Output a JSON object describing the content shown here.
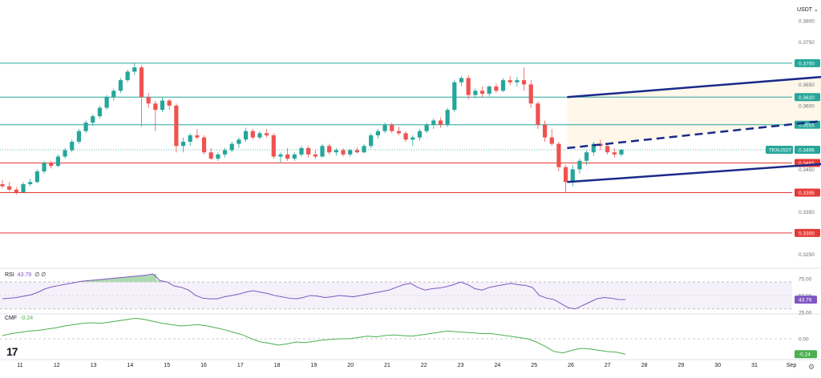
{
  "currency": "USDT",
  "dropdown_glyph": "⌄",
  "settings_icon": "gear-icon",
  "logo_text": "17",
  "colors": {
    "up": "#26a69a",
    "down": "#ef5350",
    "channel": "#1a2a8a",
    "resistance": "#26a69a",
    "support": "#e53935",
    "rsi": "#7e57c2",
    "cmf": "#4caf50",
    "last_price": "#26a69a"
  },
  "chart_data": [
    {
      "type": "candlestick",
      "symbol": "TRXUSDT",
      "ylim": [
        0.323,
        0.383
      ],
      "price_ticks": [
        "0.3800",
        "0.3750",
        "0.3650",
        "0.3600",
        "0.3450",
        "0.3350",
        "0.3250"
      ],
      "x_labels": [
        "11",
        "12",
        "13",
        "14",
        "15",
        "16",
        "17",
        "18",
        "19",
        "20",
        "21",
        "22",
        "23",
        "24",
        "25",
        "26",
        "27",
        "28",
        "29",
        "30",
        "31",
        "Sep"
      ],
      "candles": [
        [
          0.3415,
          0.3425,
          0.3405,
          0.341
        ],
        [
          0.341,
          0.342,
          0.3398,
          0.3402
        ],
        [
          0.3402,
          0.3408,
          0.339,
          0.3396
        ],
        [
          0.3396,
          0.342,
          0.3395,
          0.3415
        ],
        [
          0.3415,
          0.3428,
          0.341,
          0.342
        ],
        [
          0.342,
          0.345,
          0.3418,
          0.3445
        ],
        [
          0.3445,
          0.347,
          0.344,
          0.3465
        ],
        [
          0.3465,
          0.347,
          0.3452,
          0.3458
        ],
        [
          0.3458,
          0.3485,
          0.3455,
          0.348
        ],
        [
          0.348,
          0.35,
          0.3475,
          0.3495
        ],
        [
          0.3495,
          0.352,
          0.349,
          0.3515
        ],
        [
          0.3515,
          0.3545,
          0.351,
          0.354
        ],
        [
          0.354,
          0.3565,
          0.3535,
          0.356
        ],
        [
          0.356,
          0.358,
          0.3552,
          0.3575
        ],
        [
          0.3575,
          0.36,
          0.357,
          0.3595
        ],
        [
          0.3595,
          0.3625,
          0.359,
          0.362
        ],
        [
          0.362,
          0.364,
          0.3612,
          0.3635
        ],
        [
          0.3635,
          0.3665,
          0.363,
          0.366
        ],
        [
          0.366,
          0.3685,
          0.3655,
          0.368
        ],
        [
          0.368,
          0.37,
          0.3672,
          0.369
        ],
        [
          0.369,
          0.3695,
          0.355,
          0.362
        ],
        [
          0.362,
          0.363,
          0.3595,
          0.3605
        ],
        [
          0.3605,
          0.3612,
          0.354,
          0.359
        ],
        [
          0.359,
          0.362,
          0.3585,
          0.3612
        ],
        [
          0.3612,
          0.3616,
          0.359,
          0.36
        ],
        [
          0.36,
          0.3605,
          0.349,
          0.3505
        ],
        [
          0.3505,
          0.3525,
          0.349,
          0.3515
        ],
        [
          0.3515,
          0.3535,
          0.3505,
          0.353
        ],
        [
          0.353,
          0.3545,
          0.352,
          0.3525
        ],
        [
          0.3525,
          0.353,
          0.3485,
          0.349
        ],
        [
          0.349,
          0.35,
          0.3472,
          0.3475
        ],
        [
          0.3475,
          0.349,
          0.347,
          0.3485
        ],
        [
          0.3485,
          0.35,
          0.3478,
          0.3495
        ],
        [
          0.3495,
          0.3515,
          0.349,
          0.351
        ],
        [
          0.351,
          0.3525,
          0.35,
          0.352
        ],
        [
          0.352,
          0.3548,
          0.3515,
          0.354
        ],
        [
          0.354,
          0.3545,
          0.352,
          0.3525
        ],
        [
          0.3525,
          0.354,
          0.352,
          0.3535
        ],
        [
          0.3535,
          0.3545,
          0.3525,
          0.353
        ],
        [
          0.353,
          0.3535,
          0.3475,
          0.348
        ],
        [
          0.348,
          0.349,
          0.3465,
          0.3485
        ],
        [
          0.3485,
          0.35,
          0.347,
          0.3475
        ],
        [
          0.3475,
          0.349,
          0.347,
          0.3485
        ],
        [
          0.3485,
          0.3505,
          0.348,
          0.35
        ],
        [
          0.35,
          0.3505,
          0.3478,
          0.3485
        ],
        [
          0.3485,
          0.3495,
          0.3475,
          0.348
        ],
        [
          0.348,
          0.351,
          0.3478,
          0.3505
        ],
        [
          0.3505,
          0.351,
          0.3485,
          0.349
        ],
        [
          0.349,
          0.35,
          0.3482,
          0.3495
        ],
        [
          0.3495,
          0.35,
          0.348,
          0.3485
        ],
        [
          0.3485,
          0.3498,
          0.348,
          0.3495
        ],
        [
          0.3495,
          0.3502,
          0.3488,
          0.349
        ],
        [
          0.349,
          0.351,
          0.3488,
          0.3505
        ],
        [
          0.3505,
          0.3535,
          0.35,
          0.353
        ],
        [
          0.353,
          0.3545,
          0.3522,
          0.354
        ],
        [
          0.354,
          0.356,
          0.3535,
          0.3555
        ],
        [
          0.3555,
          0.356,
          0.3535,
          0.354
        ],
        [
          0.354,
          0.355,
          0.353,
          0.3535
        ],
        [
          0.3535,
          0.354,
          0.3515,
          0.352
        ],
        [
          0.352,
          0.353,
          0.3505,
          0.3525
        ],
        [
          0.3525,
          0.3545,
          0.3518,
          0.354
        ],
        [
          0.354,
          0.356,
          0.3535,
          0.3555
        ],
        [
          0.3555,
          0.357,
          0.3545,
          0.3565
        ],
        [
          0.3565,
          0.3572,
          0.3548,
          0.3555
        ],
        [
          0.3555,
          0.3595,
          0.355,
          0.359
        ],
        [
          0.359,
          0.366,
          0.3585,
          0.3655
        ],
        [
          0.3655,
          0.367,
          0.3645,
          0.3665
        ],
        [
          0.3665,
          0.3672,
          0.3615,
          0.3625
        ],
        [
          0.3625,
          0.364,
          0.3618,
          0.3635
        ],
        [
          0.3635,
          0.3645,
          0.362,
          0.3628
        ],
        [
          0.3628,
          0.3648,
          0.3622,
          0.3645
        ],
        [
          0.3645,
          0.3652,
          0.363,
          0.3635
        ],
        [
          0.3635,
          0.3665,
          0.3632,
          0.366
        ],
        [
          0.366,
          0.367,
          0.3648,
          0.3655
        ],
        [
          0.3655,
          0.3668,
          0.3645,
          0.366
        ],
        [
          0.366,
          0.369,
          0.3635,
          0.365
        ],
        [
          0.365,
          0.366,
          0.3595,
          0.3605
        ],
        [
          0.3605,
          0.361,
          0.3545,
          0.3555
        ],
        [
          0.3555,
          0.3565,
          0.3515,
          0.3525
        ],
        [
          0.3525,
          0.3545,
          0.3505,
          0.351
        ],
        [
          0.351,
          0.3515,
          0.3445,
          0.3455
        ],
        [
          0.3455,
          0.346,
          0.3395,
          0.342
        ],
        [
          0.342,
          0.346,
          0.341,
          0.345
        ],
        [
          0.345,
          0.3475,
          0.344,
          0.347
        ],
        [
          0.347,
          0.3495,
          0.346,
          0.349
        ],
        [
          0.349,
          0.3515,
          0.3482,
          0.351
        ],
        [
          0.351,
          0.352,
          0.3495,
          0.3505
        ],
        [
          0.3505,
          0.3512,
          0.3485,
          0.349
        ],
        [
          0.349,
          0.35,
          0.3478,
          0.3485
        ],
        [
          0.3485,
          0.3498,
          0.348,
          0.3496
        ]
      ],
      "resistance_levels": [
        "0.3700",
        "0.3620",
        "0.3555"
      ],
      "support_levels": [
        "0.3465",
        "0.3395",
        "0.3300"
      ],
      "last_price": {
        "label": "TRXUSDT",
        "value": "0.3496"
      },
      "trend_channel": {
        "x_start": 14.9,
        "x_end": 28.0,
        "upper": [
          0.362,
          0.371
        ],
        "middle": [
          0.35,
          0.362
        ],
        "lower": [
          0.342,
          0.35
        ]
      }
    },
    {
      "type": "line",
      "name": "RSI",
      "legend_label": "RSI",
      "current": "43.79",
      "extra": "∅ ∅",
      "ylim": [
        25,
        82
      ],
      "ticks": [
        "75.00",
        "50.00",
        "25.00"
      ],
      "band": [
        30,
        70
      ],
      "values": [
        45,
        46,
        47,
        49,
        51,
        55,
        60,
        63,
        65,
        67,
        69,
        71,
        72,
        73,
        74,
        75,
        76,
        77,
        78,
        79,
        80,
        82,
        72,
        70,
        64,
        62,
        58,
        50,
        46,
        45,
        45,
        48,
        50,
        52,
        55,
        57,
        55,
        53,
        50,
        48,
        46,
        45,
        47,
        50,
        49,
        47,
        48,
        50,
        49,
        48,
        50,
        52,
        54,
        56,
        58,
        62,
        66,
        68,
        62,
        58,
        60,
        61,
        63,
        66,
        70,
        66,
        60,
        58,
        62,
        64,
        66,
        68,
        66,
        65,
        62,
        50,
        46,
        44,
        38,
        32,
        30,
        35,
        40,
        45,
        47,
        46,
        44,
        43.79
      ]
    },
    {
      "type": "line",
      "name": "CMF",
      "legend_label": "CMF",
      "current": "-0.24",
      "ylim": [
        -0.3,
        0.35
      ],
      "ticks": [
        "0.00"
      ],
      "values": [
        0.05,
        0.08,
        0.1,
        0.12,
        0.13,
        0.15,
        0.17,
        0.2,
        0.22,
        0.24,
        0.25,
        0.24,
        0.26,
        0.28,
        0.3,
        0.32,
        0.3,
        0.27,
        0.24,
        0.22,
        0.2,
        0.21,
        0.22,
        0.2,
        0.17,
        0.14,
        0.1,
        0.06,
        0.0,
        -0.05,
        -0.07,
        -0.1,
        -0.08,
        -0.05,
        -0.06,
        -0.04,
        -0.02,
        -0.01,
        0.0,
        0.0,
        0.02,
        0.04,
        0.03,
        0.05,
        0.06,
        0.05,
        0.04,
        0.06,
        0.08,
        0.1,
        0.12,
        0.11,
        0.1,
        0.09,
        0.08,
        0.08,
        0.06,
        0.04,
        0.02,
        0.0,
        -0.05,
        -0.12,
        -0.2,
        -0.22,
        -0.18,
        -0.15,
        -0.16,
        -0.18,
        -0.2,
        -0.21,
        -0.24
      ]
    }
  ]
}
